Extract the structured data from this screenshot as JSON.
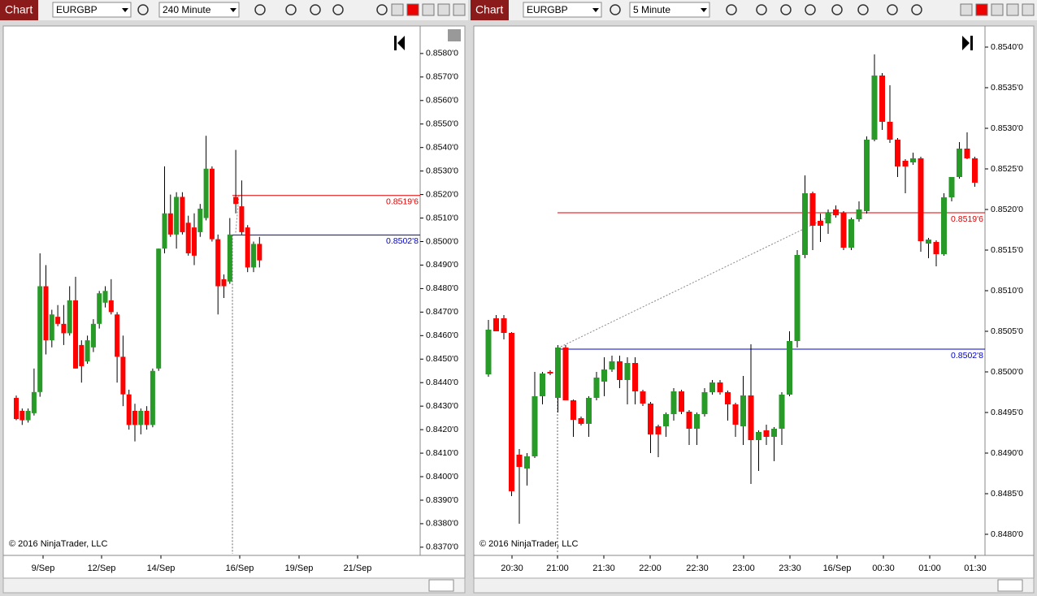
{
  "toolbars": [
    {
      "tab": "Chart",
      "instrument": "EURGBP",
      "interval": "240 Minute"
    },
    {
      "tab": "Chart",
      "instrument": "EURGBP",
      "interval": "5 Minute"
    }
  ],
  "chart_data": [
    {
      "type": "candlestick",
      "up_color": "#279a27",
      "down_color": "#ff0000",
      "copyright": "© 2016 NinjaTrader, LLC",
      "ylim": [
        0.83672,
        0.85917
      ],
      "yticks": [
        {
          "value": 0.837,
          "label": "0.8370'0"
        },
        {
          "value": 0.838,
          "label": "0.8380'0"
        },
        {
          "value": 0.839,
          "label": "0.8390'0"
        },
        {
          "value": 0.84,
          "label": "0.8400'0"
        },
        {
          "value": 0.841,
          "label": "0.8410'0"
        },
        {
          "value": 0.842,
          "label": "0.8420'0"
        },
        {
          "value": 0.843,
          "label": "0.8430'0"
        },
        {
          "value": 0.844,
          "label": "0.8440'0"
        },
        {
          "value": 0.845,
          "label": "0.8450'0"
        },
        {
          "value": 0.846,
          "label": "0.8460'0"
        },
        {
          "value": 0.847,
          "label": "0.8470'0"
        },
        {
          "value": 0.848,
          "label": "0.8480'0"
        },
        {
          "value": 0.849,
          "label": "0.8490'0"
        },
        {
          "value": 0.85,
          "label": "0.8500'0"
        },
        {
          "value": 0.851,
          "label": "0.8510'0"
        },
        {
          "value": 0.852,
          "label": "0.8520'0"
        },
        {
          "value": 0.853,
          "label": "0.8530'0"
        },
        {
          "value": 0.854,
          "label": "0.8540'0"
        },
        {
          "value": 0.855,
          "label": "0.8550'0"
        },
        {
          "value": 0.856,
          "label": "0.8560'0"
        },
        {
          "value": 0.857,
          "label": "0.8570'0"
        },
        {
          "value": 0.858,
          "label": "0.8580'0"
        }
      ],
      "xtick_labels": [
        "9/Sep",
        "12/Sep",
        "14/Sep",
        "16/Sep",
        "19/Sep",
        "21/Sep"
      ],
      "price_lines": [
        {
          "value": 0.85196,
          "label": "0.8519'6",
          "color": "#e00000"
        },
        {
          "value": 0.85028,
          "label": "0.8502'8",
          "color": "#0000cc"
        }
      ],
      "ohlc": [
        [
          0.84335,
          0.84345,
          0.8424,
          0.84245
        ],
        [
          0.8428,
          0.8429,
          0.8422,
          0.8424
        ],
        [
          0.8424,
          0.8429,
          0.8423,
          0.8428
        ],
        [
          0.8427,
          0.8446,
          0.8426,
          0.8436
        ],
        [
          0.8436,
          0.8495,
          0.8434,
          0.8481
        ],
        [
          0.8481,
          0.849,
          0.8452,
          0.8458
        ],
        [
          0.8458,
          0.8471,
          0.8455,
          0.8469
        ],
        [
          0.8468,
          0.8473,
          0.8464,
          0.8465
        ],
        [
          0.8465,
          0.8473,
          0.8456,
          0.8461
        ],
        [
          0.8461,
          0.8481,
          0.846,
          0.8475
        ],
        [
          0.8475,
          0.8485,
          0.8446,
          0.8446
        ],
        [
          0.8456,
          0.8458,
          0.844,
          0.8447
        ],
        [
          0.8449,
          0.846,
          0.8448,
          0.8458
        ],
        [
          0.8455,
          0.8467,
          0.8453,
          0.8465
        ],
        [
          0.8465,
          0.8479,
          0.8463,
          0.8478
        ],
        [
          0.8474,
          0.8481,
          0.8472,
          0.8479
        ],
        [
          0.8475,
          0.8484,
          0.8469,
          0.847
        ],
        [
          0.8469,
          0.847,
          0.844,
          0.8451
        ],
        [
          0.8451,
          0.846,
          0.843,
          0.8435
        ],
        [
          0.8435,
          0.8437,
          0.842,
          0.8422
        ],
        [
          0.8428,
          0.8431,
          0.8415,
          0.8422
        ],
        [
          0.8422,
          0.8429,
          0.8418,
          0.8428
        ],
        [
          0.8428,
          0.843,
          0.842,
          0.8422
        ],
        [
          0.8422,
          0.8446,
          0.8421,
          0.8445
        ],
        [
          0.8446,
          0.8497,
          0.8445,
          0.8497
        ],
        [
          0.8497,
          0.8532,
          0.8495,
          0.8512
        ],
        [
          0.8512,
          0.852,
          0.8502,
          0.8503
        ],
        [
          0.8503,
          0.8521,
          0.8497,
          0.8519
        ],
        [
          0.8519,
          0.8521,
          0.8503,
          0.8504
        ],
        [
          0.8508,
          0.8511,
          0.8494,
          0.8495
        ],
        [
          0.8506,
          0.8512,
          0.849,
          0.8494
        ],
        [
          0.8504,
          0.8516,
          0.8502,
          0.8514
        ],
        [
          0.851,
          0.8545,
          0.8509,
          0.8531
        ],
        [
          0.8531,
          0.8532,
          0.85,
          0.8501
        ],
        [
          0.8501,
          0.8503,
          0.8469,
          0.8481
        ],
        [
          0.8484,
          0.8486,
          0.8476,
          0.8481
        ],
        [
          0.8483,
          0.851,
          0.8482,
          0.8503
        ],
        [
          0.8519,
          0.8539,
          0.8512,
          0.8516
        ],
        [
          0.8515,
          0.8526,
          0.8503,
          0.8504
        ],
        [
          0.8506,
          0.8507,
          0.8487,
          0.8489
        ],
        [
          0.8489,
          0.85,
          0.8487,
          0.8499
        ],
        [
          0.8499,
          0.8502,
          0.8489,
          0.8492
        ]
      ]
    },
    {
      "type": "candlestick",
      "up_color": "#279a27",
      "down_color": "#ff0000",
      "copyright": "© 2016 NinjaTrader, LLC",
      "ylim": [
        0.84776,
        0.85426
      ],
      "yticks": [
        {
          "value": 0.848,
          "label": "0.8480'0"
        },
        {
          "value": 0.8485,
          "label": "0.8485'0"
        },
        {
          "value": 0.849,
          "label": "0.8490'0"
        },
        {
          "value": 0.8495,
          "label": "0.8495'0"
        },
        {
          "value": 0.85,
          "label": "0.8500'0"
        },
        {
          "value": 0.8505,
          "label": "0.8505'0"
        },
        {
          "value": 0.851,
          "label": "0.8510'0"
        },
        {
          "value": 0.8515,
          "label": "0.8515'0"
        },
        {
          "value": 0.852,
          "label": "0.8520'0"
        },
        {
          "value": 0.8525,
          "label": "0.8525'0"
        },
        {
          "value": 0.853,
          "label": "0.8530'0"
        },
        {
          "value": 0.8535,
          "label": "0.8535'0"
        },
        {
          "value": 0.854,
          "label": "0.8540'0"
        }
      ],
      "xtick_labels": [
        "20:30",
        "21:00",
        "21:30",
        "22:00",
        "22:30",
        "23:00",
        "23:30",
        "16/Sep",
        "00:30",
        "01:00",
        "01:30"
      ],
      "price_lines": [
        {
          "value": 0.85196,
          "label": "0.8519'6",
          "color": "#e00000"
        },
        {
          "value": 0.85028,
          "label": "0.8502'8",
          "color": "#0000cc"
        }
      ],
      "ohlc": [
        [
          0.84997,
          0.85064,
          0.84994,
          0.85052
        ],
        [
          0.85066,
          0.8507,
          0.8505,
          0.8505
        ],
        [
          0.85066,
          0.8507,
          0.8504,
          0.85048
        ],
        [
          0.85048,
          0.85049,
          0.84847,
          0.84853
        ],
        [
          0.84898,
          0.84905,
          0.84813,
          0.84883
        ],
        [
          0.84881,
          0.849,
          0.8486,
          0.84896
        ],
        [
          0.84896,
          0.85,
          0.84894,
          0.8497
        ],
        [
          0.8497,
          0.85,
          0.8496,
          0.84998
        ],
        [
          0.85,
          0.85002,
          0.84996,
          0.84998
        ],
        [
          0.84968,
          0.85033,
          0.8495,
          0.8503
        ],
        [
          0.8503,
          0.85033,
          0.84965,
          0.84965
        ],
        [
          0.84965,
          0.84966,
          0.8492,
          0.84941
        ],
        [
          0.84943,
          0.84945,
          0.84934,
          0.84936
        ],
        [
          0.84936,
          0.8497,
          0.8492,
          0.84968
        ],
        [
          0.84968,
          0.85,
          0.84965,
          0.84993
        ],
        [
          0.84988,
          0.85018,
          0.8497,
          0.85003
        ],
        [
          0.85003,
          0.8502,
          0.85,
          0.85013
        ],
        [
          0.85013,
          0.8502,
          0.8498,
          0.8499
        ],
        [
          0.8499,
          0.85018,
          0.8496,
          0.85011
        ],
        [
          0.85011,
          0.85018,
          0.8496,
          0.84976
        ],
        [
          0.84976,
          0.84978,
          0.84958,
          0.84961
        ],
        [
          0.84961,
          0.84963,
          0.849,
          0.84923
        ],
        [
          0.84933,
          0.84935,
          0.84895,
          0.84923
        ],
        [
          0.84933,
          0.8495,
          0.8492,
          0.84948
        ],
        [
          0.84948,
          0.8498,
          0.8494,
          0.84976
        ],
        [
          0.84976,
          0.84978,
          0.84948,
          0.84951
        ],
        [
          0.84951,
          0.84953,
          0.8491,
          0.8493
        ],
        [
          0.8493,
          0.8495,
          0.8491,
          0.84948
        ],
        [
          0.84948,
          0.8498,
          0.84945,
          0.84975
        ],
        [
          0.84975,
          0.8499,
          0.84972,
          0.84987
        ],
        [
          0.84987,
          0.8499,
          0.84972,
          0.84975
        ],
        [
          0.84975,
          0.84977,
          0.8494,
          0.8496
        ],
        [
          0.8496,
          0.84962,
          0.8492,
          0.84935
        ],
        [
          0.84933,
          0.84995,
          0.8491,
          0.84971
        ],
        [
          0.84971,
          0.85034,
          0.84862,
          0.84916
        ],
        [
          0.84916,
          0.84928,
          0.84878,
          0.84926
        ],
        [
          0.84928,
          0.84935,
          0.8491,
          0.8492
        ],
        [
          0.8492,
          0.84932,
          0.8489,
          0.8493
        ],
        [
          0.8493,
          0.84975,
          0.8491,
          0.84972
        ],
        [
          0.84972,
          0.8505,
          0.8497,
          0.85038
        ],
        [
          0.85038,
          0.8515,
          0.8503,
          0.85144
        ],
        [
          0.85144,
          0.85242,
          0.8514,
          0.8522
        ],
        [
          0.8522,
          0.85222,
          0.8515,
          0.8518
        ],
        [
          0.85186,
          0.85195,
          0.8516,
          0.8518
        ],
        [
          0.85183,
          0.852,
          0.8517,
          0.85196
        ],
        [
          0.852,
          0.85205,
          0.8519,
          0.85193
        ],
        [
          0.85196,
          0.85198,
          0.8515,
          0.85153
        ],
        [
          0.85153,
          0.8519,
          0.8515,
          0.85188
        ],
        [
          0.85188,
          0.8521,
          0.85185,
          0.852
        ],
        [
          0.85198,
          0.8529,
          0.85195,
          0.85286
        ],
        [
          0.85286,
          0.85391,
          0.85284,
          0.85365
        ],
        [
          0.85365,
          0.85368,
          0.85298,
          0.85308
        ],
        [
          0.85308,
          0.85353,
          0.85282,
          0.85286
        ],
        [
          0.85286,
          0.85288,
          0.8524,
          0.85253
        ],
        [
          0.8526,
          0.85262,
          0.8522,
          0.85253
        ],
        [
          0.85258,
          0.8527,
          0.85255,
          0.85263
        ],
        [
          0.85263,
          0.85265,
          0.85148,
          0.85161
        ],
        [
          0.85158,
          0.85165,
          0.8514,
          0.85163
        ],
        [
          0.8516,
          0.85162,
          0.8513,
          0.85145
        ],
        [
          0.85145,
          0.8522,
          0.85143,
          0.85215
        ],
        [
          0.85215,
          0.8524,
          0.8521,
          0.8524
        ],
        [
          0.8524,
          0.85283,
          0.85238,
          0.85275
        ],
        [
          0.85275,
          0.85295,
          0.85262,
          0.85263
        ],
        [
          0.85263,
          0.85265,
          0.85228,
          0.85233
        ]
      ]
    }
  ]
}
